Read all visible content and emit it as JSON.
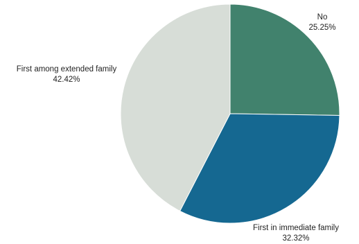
{
  "chart_data": {
    "type": "pie",
    "start_angle_deg": 0,
    "direction": "clockwise",
    "slices": [
      {
        "label": "No",
        "value": 25.25,
        "value_text": "25.25%",
        "color": "#41826d"
      },
      {
        "label": "First in immediate family",
        "value": 32.32,
        "value_text": "32.32%",
        "color": "#156891"
      },
      {
        "label": "First among extended family",
        "value": 42.42,
        "value_text": "42.42%",
        "color": "#d7ddd7"
      }
    ]
  }
}
